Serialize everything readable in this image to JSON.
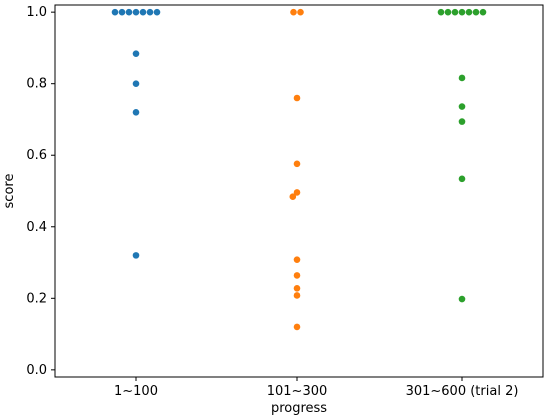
{
  "chart_data": {
    "type": "scatter",
    "title": "",
    "xlabel": "progress",
    "ylabel": "score",
    "categories": [
      "1~100",
      "101~300",
      "301~600 (trial 2)"
    ],
    "ylim": [
      -0.02,
      1.02
    ],
    "yticks": [
      "0.0",
      "0.2",
      "0.4",
      "0.6",
      "0.8",
      "1.0"
    ],
    "grid": false,
    "legend": "none",
    "series": [
      {
        "category": "1~100",
        "color": "#1f77b4",
        "values": [
          1.0,
          1.0,
          1.0,
          1.0,
          1.0,
          1.0,
          1.0,
          0.884,
          0.8,
          0.72,
          0.32
        ]
      },
      {
        "category": "101~300",
        "color": "#ff7f0e",
        "values": [
          1.0,
          1.0,
          0.76,
          0.576,
          0.496,
          0.484,
          0.308,
          0.264,
          0.228,
          0.208,
          0.12
        ]
      },
      {
        "category": "301~600 (trial 2)",
        "color": "#2ca02c",
        "values": [
          1.0,
          1.0,
          1.0,
          1.0,
          1.0,
          1.0,
          1.0,
          0.816,
          0.736,
          0.694,
          0.534,
          0.198
        ]
      }
    ]
  }
}
